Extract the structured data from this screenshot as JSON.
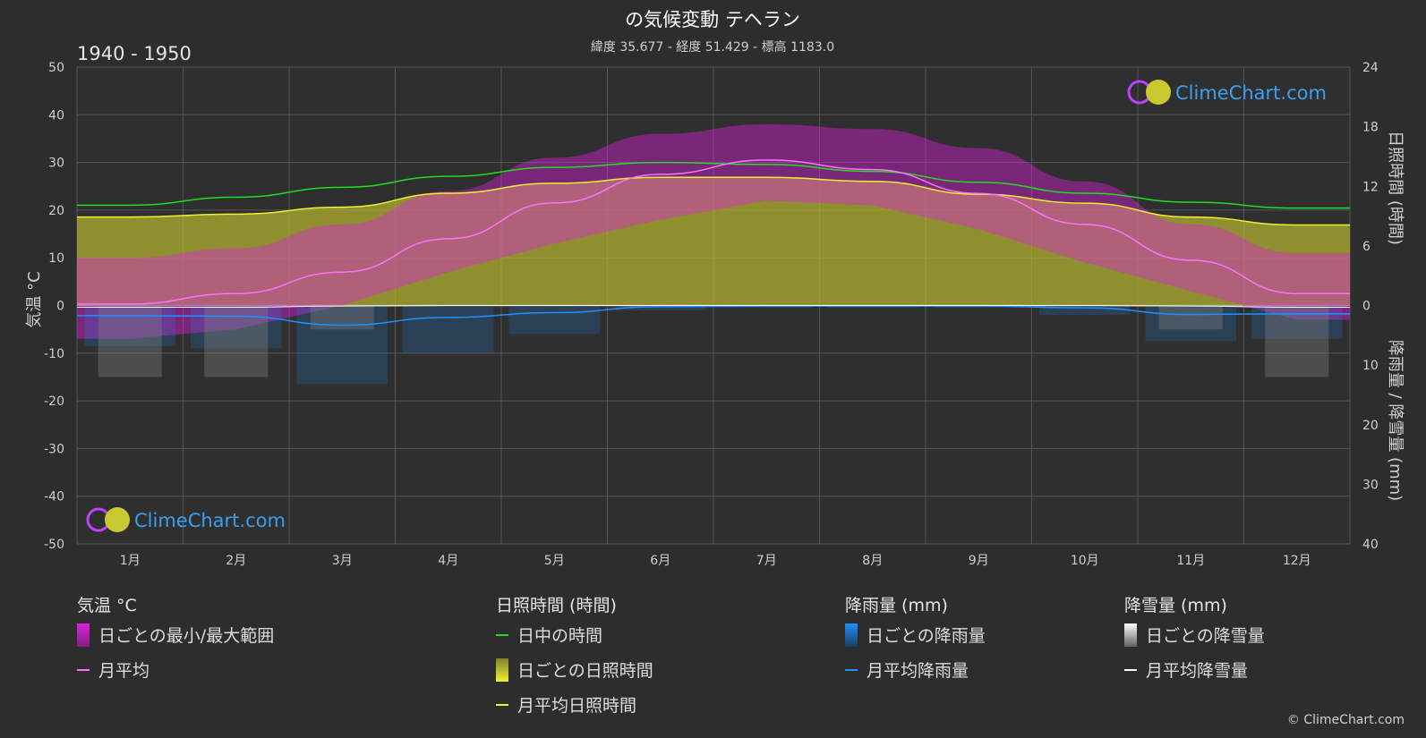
{
  "header": {
    "title": "の気候変動 テヘラン",
    "subtitle": "緯度 35.677 - 経度 51.429 - 標高 1183.0",
    "period": "1940 - 1950"
  },
  "axes": {
    "left_label": "気温 °C",
    "right_top_label": "日照時間 (時間)",
    "right_bottom_label": "降雨量 / 降雪量 (mm)",
    "left_ticks": [
      "50",
      "40",
      "30",
      "20",
      "10",
      "0",
      "-10",
      "-20",
      "-30",
      "-40",
      "-50"
    ],
    "right_top_ticks": [
      "24",
      "18",
      "12",
      "6",
      "0"
    ],
    "right_bottom_ticks": [
      "10",
      "20",
      "30",
      "40"
    ]
  },
  "logo": {
    "text": "ClimeChart.com"
  },
  "copyright": "© ClimeChart.com",
  "colors": {
    "background": "#2d2d2d",
    "temp_range": "#e020e0",
    "temp_mean": "#ff70ff",
    "daylight": "#22dd22",
    "sunshine": "#b0b030",
    "sunshine_mean": "#f0f030",
    "rain": "#1e90ff",
    "snow": "#ffffff"
  },
  "legend": {
    "temp": {
      "title": "気温 °C",
      "range": "日ごとの最小/最大範囲",
      "mean": "月平均"
    },
    "sun": {
      "title": "日照時間 (時間)",
      "daylight": "日中の時間",
      "daily": "日ごとの日照時間",
      "mean": "月平均日照時間"
    },
    "rain": {
      "title": "降雨量 (mm)",
      "daily": "日ごとの降雨量",
      "mean": "月平均降雨量"
    },
    "snow": {
      "title": "降雪量 (mm)",
      "daily": "日ごとの降雪量",
      "mean": "月平均降雪量"
    }
  },
  "chart_data": {
    "type": "area",
    "title": "の気候変動 テヘラン",
    "subtitle": "緯度 35.677 - 経度 51.429 - 標高 1183.0",
    "categories": [
      "1月",
      "2月",
      "3月",
      "4月",
      "5月",
      "6月",
      "7月",
      "8月",
      "9月",
      "10月",
      "11月",
      "12月"
    ],
    "temp_axis": {
      "label": "気温 °C",
      "ylim": [
        -50,
        50
      ]
    },
    "sun_axis": {
      "label": "日照時間 (時間)",
      "ylim": [
        0,
        24
      ]
    },
    "precip_axis": {
      "label": "降雨量 / 降雪量 (mm)",
      "ylim": [
        0,
        40
      ],
      "inverted": true
    },
    "grid": true,
    "series": [
      {
        "name": "月平均",
        "unit": "°C",
        "values": [
          0.3,
          2.5,
          7.0,
          14.0,
          21.5,
          27.5,
          30.5,
          28.5,
          23.5,
          17.0,
          9.5,
          2.5
        ]
      },
      {
        "name": "日ごとの最小/最大範囲 (最小)",
        "unit": "°C",
        "values": [
          -7,
          -5,
          0,
          7,
          13,
          18,
          22,
          21,
          16,
          9,
          3,
          -3
        ]
      },
      {
        "name": "日ごとの最小/最大範囲 (最大)",
        "unit": "°C",
        "values": [
          10,
          12,
          17,
          24,
          31,
          36,
          38,
          37,
          33,
          26,
          17,
          11
        ]
      },
      {
        "name": "日中の時間",
        "unit": "h",
        "values": [
          10.1,
          10.9,
          11.9,
          13.0,
          13.9,
          14.4,
          14.2,
          13.5,
          12.4,
          11.3,
          10.4,
          9.8
        ]
      },
      {
        "name": "月平均日照時間",
        "unit": "h",
        "values": [
          8.9,
          9.2,
          9.9,
          11.3,
          12.3,
          12.9,
          12.9,
          12.5,
          11.2,
          10.3,
          8.9,
          8.1
        ]
      },
      {
        "name": "月平均降雨量",
        "unit": "mm",
        "values": [
          1.7,
          1.8,
          3.3,
          2.0,
          1.2,
          0.2,
          0.1,
          0.1,
          0.1,
          0.4,
          1.5,
          1.4
        ]
      },
      {
        "name": "月平均降雪量",
        "unit": "mm",
        "values": [
          0.3,
          0.3,
          0.1,
          0.0,
          0.0,
          0.0,
          0.0,
          0.0,
          0.0,
          0.0,
          0.1,
          0.3
        ]
      }
    ],
    "legend_position": "bottom"
  }
}
